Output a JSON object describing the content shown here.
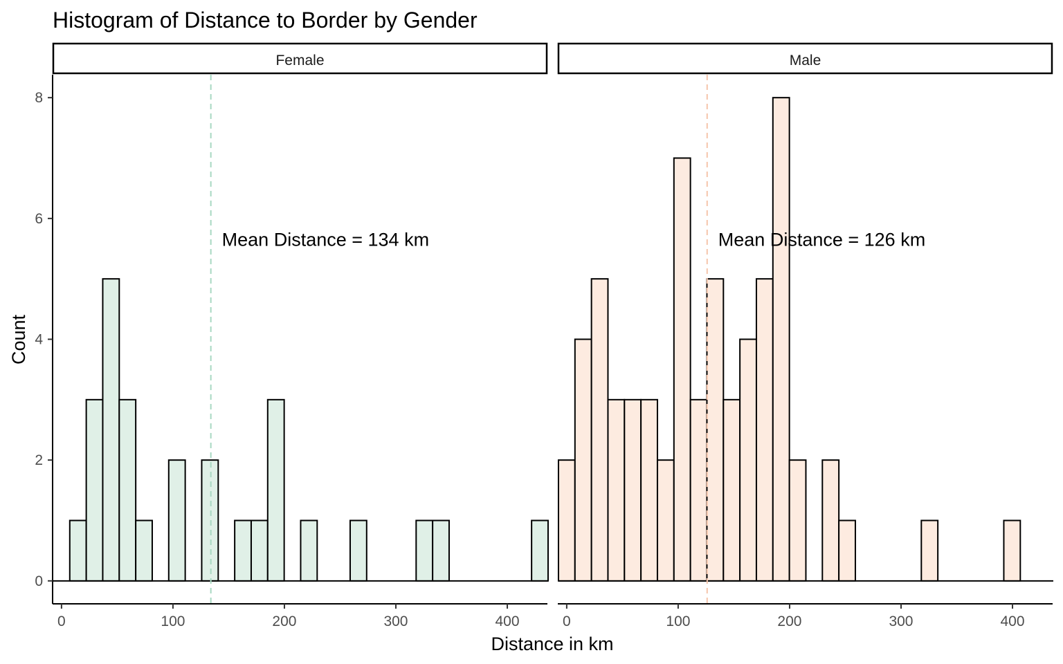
{
  "chart_data": {
    "type": "bar",
    "title": "Histogram of Distance to Border by Gender",
    "xlabel": "Distance in km",
    "ylabel": "Count",
    "xlim": [
      -8,
      436
    ],
    "ylim": [
      -0.38,
      8.38
    ],
    "x_ticks": [
      0,
      100,
      200,
      300,
      400
    ],
    "y_ticks": [
      0,
      2,
      4,
      6,
      8
    ],
    "bin_width": 14.8,
    "bin_start": -7.4,
    "legend": "none",
    "grid": false,
    "panels": [
      {
        "name": "Female",
        "fill": "#e0f0e7",
        "mean_line_color": "#a8d8c2",
        "mean": 134,
        "annotation": "Mean Distance =  134 km",
        "counts": [
          0,
          1,
          3,
          5,
          3,
          1,
          0,
          2,
          0,
          2,
          0,
          1,
          1,
          3,
          0,
          1,
          0,
          0,
          1,
          0,
          0,
          0,
          1,
          1,
          0,
          0,
          0,
          0,
          0,
          1
        ]
      },
      {
        "name": "Male",
        "fill": "#fdebe0",
        "mean_line_color": "#f5c5ab",
        "mean": 126,
        "annotation": "Mean Distance =  126 km",
        "counts": [
          2,
          4,
          5,
          3,
          3,
          3,
          2,
          7,
          3,
          5,
          3,
          4,
          5,
          8,
          2,
          0,
          2,
          1,
          0,
          0,
          0,
          0,
          1,
          0,
          0,
          0,
          0,
          1,
          0,
          0
        ]
      }
    ]
  }
}
